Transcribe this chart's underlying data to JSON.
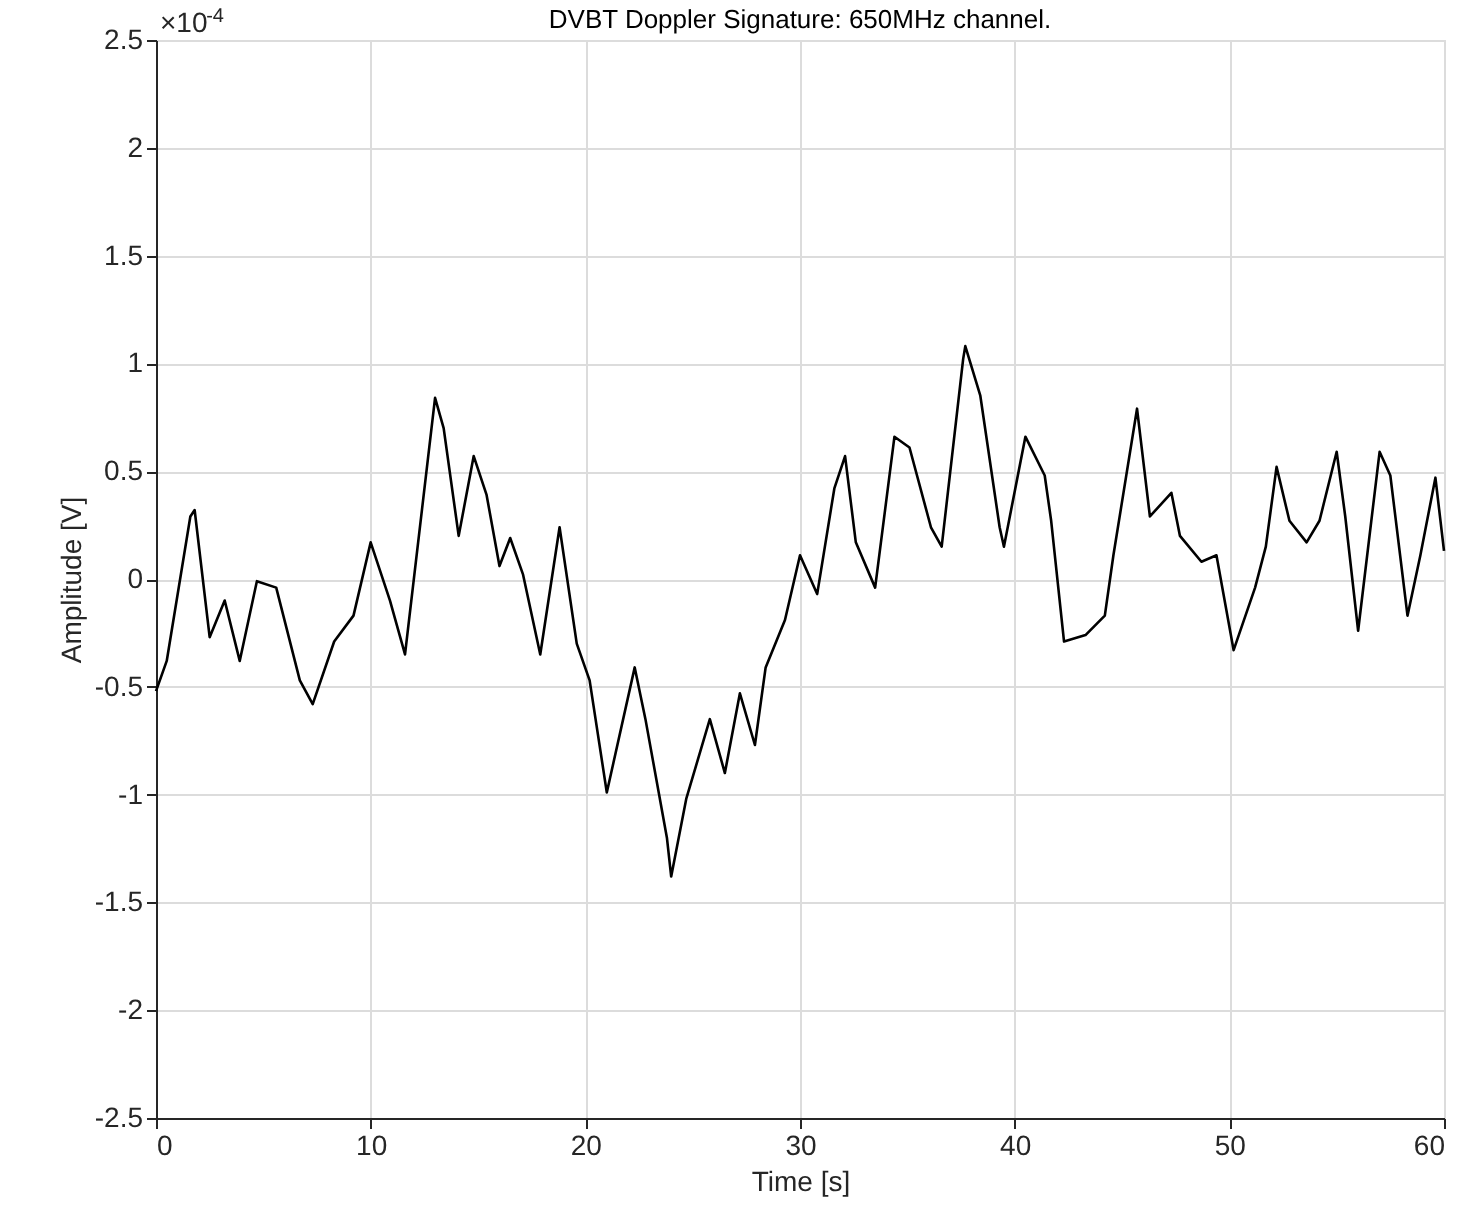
{
  "chart_data": {
    "type": "line",
    "title": "DVBT Doppler Signature: 650MHz channel.",
    "xlabel": "Time [s]",
    "ylabel": "Amplitude [V]",
    "annotations": [
      "×10$^{-4}$"
    ],
    "xlim": [
      0,
      60
    ],
    "xticks": [
      0,
      10,
      20,
      30,
      40,
      50,
      60
    ],
    "ylim": [
      -2.5,
      2.5
    ],
    "yticks": [
      -2.5,
      -2,
      -1.5,
      -1,
      -0.5,
      0,
      0.5,
      1,
      1.5,
      2,
      2.5
    ],
    "grid": true,
    "marker": "none",
    "line_style": "solid",
    "series": [
      {
        "color": "#000000",
        "x": [
          0,
          0.5,
          1.6,
          1.8,
          2.5,
          3.2,
          3.9,
          4.7,
          5.6,
          6.7,
          7.3,
          8.3,
          9.2,
          10.0,
          10.9,
          11.6,
          13.0,
          13.4,
          14.1,
          14.8,
          15.4,
          16.0,
          16.5,
          17.1,
          17.9,
          18.8,
          19.6,
          20.2,
          21.0,
          22.3,
          22.8,
          23.8,
          24.0,
          24.7,
          25.8,
          26.5,
          27.2,
          27.9,
          28.4,
          29.3,
          30.0,
          30.8,
          31.6,
          32.1,
          32.6,
          33.5,
          34.4,
          35.1,
          36.1,
          36.6,
          37.6,
          37.7,
          38.4,
          39.3,
          39.5,
          40.5,
          41.4,
          41.7,
          42.3,
          43.3,
          44.2,
          44.6,
          45.7,
          46.3,
          47.3,
          47.7,
          48.7,
          49.4,
          50.2,
          51.2,
          51.7,
          52.2,
          52.8,
          53.6,
          54.2,
          55.0,
          55.4,
          56.0,
          57.0,
          57.5,
          58.3,
          58.9,
          59.6,
          60
        ],
        "values": [
          -0.52,
          -0.38,
          0.29,
          0.32,
          -0.27,
          -0.1,
          -0.38,
          -0.01,
          -0.04,
          -0.47,
          -0.58,
          -0.29,
          -0.17,
          0.17,
          -0.1,
          -0.35,
          0.84,
          0.7,
          0.2,
          0.57,
          0.39,
          0.06,
          0.19,
          0.02,
          -0.35,
          0.24,
          -0.3,
          -0.47,
          -0.99,
          -0.41,
          -0.65,
          -1.2,
          -1.38,
          -1.02,
          -0.65,
          -0.9,
          -0.53,
          -0.77,
          -0.41,
          -0.19,
          0.11,
          -0.07,
          0.42,
          0.57,
          0.17,
          -0.04,
          0.66,
          0.61,
          0.24,
          0.15,
          1.02,
          1.08,
          0.85,
          0.24,
          0.15,
          0.66,
          0.48,
          0.27,
          -0.29,
          -0.26,
          -0.17,
          0.11,
          0.79,
          0.29,
          0.4,
          0.2,
          0.08,
          0.11,
          -0.33,
          -0.04,
          0.15,
          0.52,
          0.27,
          0.17,
          0.27,
          0.59,
          0.29,
          -0.24,
          0.59,
          0.48,
          -0.17,
          0.11,
          0.47,
          0.13
        ]
      }
    ]
  }
}
